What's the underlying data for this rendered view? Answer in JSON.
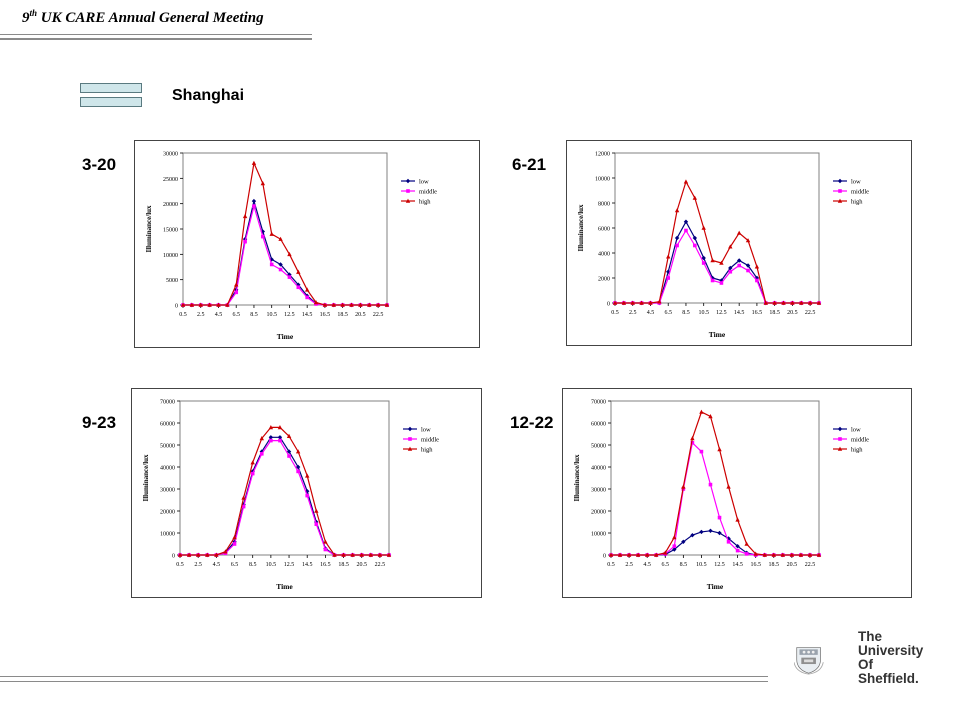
{
  "header": {
    "title_sup": "th",
    "title_number": "9",
    "title_text": " UK CARE Annual General Meeting"
  },
  "section_title": "Shanghai",
  "logo": {
    "line1": "The",
    "line2": "University",
    "line3": "Of",
    "line4": "Sheffield."
  },
  "colors": {
    "low": "#000080",
    "middle": "#ff00ff",
    "high": "#cc0000",
    "legend_box": "#cfe6ea"
  },
  "chart_data": [
    {
      "type": "line",
      "date_label": "3-20",
      "xlabel": "Time",
      "ylabel": "Illuminance/lux",
      "ylim": [
        0,
        30000
      ],
      "yticks": [
        0,
        5000,
        10000,
        15000,
        20000,
        25000,
        30000
      ],
      "ytick_labels": [
        "0",
        "5000",
        "10000",
        "15000",
        "20000",
        "25000",
        "30000"
      ],
      "x": [
        0.5,
        1.5,
        2.5,
        3.5,
        4.5,
        5.5,
        6.5,
        7.5,
        8.5,
        9.5,
        10.5,
        11.5,
        12.5,
        13.5,
        14.5,
        15.5,
        16.5,
        17.5,
        18.5,
        19.5,
        20.5,
        21.5,
        22.5,
        23.5
      ],
      "xticks": [
        "0.5",
        "2.5",
        "4.5",
        "6.5",
        "8.5",
        "10.5",
        "12.5",
        "14.5",
        "16.5",
        "18.5",
        "20.5",
        "22.5"
      ],
      "legend_position": "right",
      "series": [
        {
          "name": "low",
          "values": [
            0,
            0,
            0,
            0,
            0,
            0,
            3000,
            13000,
            20500,
            14500,
            9000,
            8000,
            6000,
            4000,
            1800,
            300,
            0,
            0,
            0,
            0,
            0,
            0,
            0,
            0
          ]
        },
        {
          "name": "middle",
          "values": [
            0,
            0,
            0,
            0,
            0,
            0,
            2500,
            12500,
            19500,
            13500,
            8000,
            7000,
            5500,
            3500,
            1500,
            200,
            0,
            0,
            0,
            0,
            0,
            0,
            0,
            0
          ]
        },
        {
          "name": "high",
          "values": [
            0,
            0,
            0,
            0,
            0,
            0,
            4000,
            17500,
            28000,
            24000,
            14000,
            13000,
            10000,
            6500,
            3000,
            500,
            0,
            0,
            0,
            0,
            0,
            0,
            0,
            0
          ]
        }
      ]
    },
    {
      "type": "line",
      "date_label": "6-21",
      "xlabel": "Time",
      "ylabel": "Illuminance/lux",
      "ylim": [
        0,
        12000
      ],
      "yticks": [
        0,
        2000,
        4000,
        6000,
        8000,
        10000,
        12000
      ],
      "ytick_labels": [
        "0",
        "2000",
        "4000",
        "6000",
        "8000",
        "10000",
        "12000"
      ],
      "x": [
        0.5,
        1.5,
        2.5,
        3.5,
        4.5,
        5.5,
        6.5,
        7.5,
        8.5,
        9.5,
        10.5,
        11.5,
        12.5,
        13.5,
        14.5,
        15.5,
        16.5,
        17.5,
        18.5,
        19.5,
        20.5,
        21.5,
        22.5,
        23.5
      ],
      "xticks": [
        "0.5",
        "2.5",
        "4.5",
        "6.5",
        "8.5",
        "10.5",
        "12.5",
        "14.5",
        "16.5",
        "18.5",
        "20.5",
        "22.5"
      ],
      "legend_position": "right",
      "series": [
        {
          "name": "low",
          "values": [
            0,
            0,
            0,
            0,
            0,
            0,
            2500,
            5200,
            6500,
            5200,
            3600,
            2000,
            1800,
            2800,
            3400,
            3000,
            2000,
            0,
            0,
            0,
            0,
            0,
            0,
            0
          ]
        },
        {
          "name": "middle",
          "values": [
            0,
            0,
            0,
            0,
            0,
            0,
            2000,
            4600,
            5800,
            4600,
            3200,
            1800,
            1600,
            2500,
            3000,
            2600,
            1800,
            0,
            0,
            0,
            0,
            0,
            0,
            0
          ]
        },
        {
          "name": "high",
          "values": [
            0,
            0,
            0,
            0,
            0,
            100,
            3700,
            7400,
            9700,
            8400,
            6000,
            3400,
            3200,
            4500,
            5600,
            5000,
            2900,
            0,
            0,
            0,
            0,
            0,
            0,
            0
          ]
        }
      ]
    },
    {
      "type": "line",
      "date_label": "9-23",
      "xlabel": "Time",
      "ylabel": "Illuminance/lux",
      "ylim": [
        0,
        70000
      ],
      "yticks": [
        0,
        10000,
        20000,
        30000,
        40000,
        50000,
        60000,
        70000
      ],
      "ytick_labels": [
        "0",
        "10000",
        "20000",
        "30000",
        "40000",
        "50000",
        "60000",
        "70000"
      ],
      "x": [
        0.5,
        1.5,
        2.5,
        3.5,
        4.5,
        5.5,
        6.5,
        7.5,
        8.5,
        9.5,
        10.5,
        11.5,
        12.5,
        13.5,
        14.5,
        15.5,
        16.5,
        17.5,
        18.5,
        19.5,
        20.5,
        21.5,
        22.5,
        23.5
      ],
      "xticks": [
        "0.5",
        "2.5",
        "4.5",
        "6.5",
        "8.5",
        "10.5",
        "12.5",
        "14.5",
        "16.5",
        "18.5",
        "20.5",
        "22.5"
      ],
      "legend_position": "right",
      "series": [
        {
          "name": "low",
          "values": [
            0,
            0,
            0,
            0,
            0,
            1000,
            6000,
            23000,
            38000,
            47000,
            53500,
            53500,
            47000,
            40000,
            29000,
            15000,
            3000,
            0,
            0,
            0,
            0,
            0,
            0,
            0
          ]
        },
        {
          "name": "middle",
          "values": [
            0,
            0,
            0,
            0,
            0,
            800,
            5000,
            22000,
            37000,
            46000,
            52000,
            52000,
            45000,
            38000,
            27000,
            14000,
            2500,
            0,
            0,
            0,
            0,
            0,
            0,
            0
          ]
        },
        {
          "name": "high",
          "values": [
            0,
            0,
            0,
            0,
            0,
            1500,
            8000,
            26000,
            42000,
            53000,
            58000,
            58000,
            54000,
            47000,
            36000,
            20000,
            6000,
            0,
            0,
            0,
            0,
            0,
            0,
            0
          ]
        }
      ]
    },
    {
      "type": "line",
      "date_label": "12-22",
      "xlabel": "Time",
      "ylabel": "Illuminance/lux",
      "ylim": [
        0,
        70000
      ],
      "yticks": [
        0,
        10000,
        20000,
        30000,
        40000,
        50000,
        60000,
        70000
      ],
      "ytick_labels": [
        "0",
        "10000",
        "20000",
        "30000",
        "40000",
        "50000",
        "60000",
        "70000"
      ],
      "x": [
        0.5,
        1.5,
        2.5,
        3.5,
        4.5,
        5.5,
        6.5,
        7.5,
        8.5,
        9.5,
        10.5,
        11.5,
        12.5,
        13.5,
        14.5,
        15.5,
        16.5,
        17.5,
        18.5,
        19.5,
        20.5,
        21.5,
        22.5,
        23.5
      ],
      "xticks": [
        "0.5",
        "2.5",
        "4.5",
        "6.5",
        "8.5",
        "10.5",
        "12.5",
        "14.5",
        "16.5",
        "18.5",
        "20.5",
        "22.5"
      ],
      "legend_position": "right",
      "series": [
        {
          "name": "low",
          "values": [
            0,
            0,
            0,
            0,
            0,
            0,
            200,
            2500,
            6000,
            9000,
            10500,
            11000,
            10000,
            7500,
            4000,
            1000,
            0,
            0,
            0,
            0,
            0,
            0,
            0,
            0
          ]
        },
        {
          "name": "middle",
          "values": [
            0,
            0,
            0,
            0,
            0,
            0,
            500,
            4000,
            30000,
            51000,
            47000,
            32000,
            17000,
            6000,
            2000,
            500,
            0,
            0,
            0,
            0,
            0,
            0,
            0,
            0
          ]
        },
        {
          "name": "high",
          "values": [
            0,
            0,
            0,
            0,
            0,
            0,
            1000,
            8000,
            31000,
            53000,
            65000,
            63000,
            48000,
            31000,
            16000,
            5000,
            500,
            0,
            0,
            0,
            0,
            0,
            0,
            0
          ]
        }
      ]
    }
  ]
}
